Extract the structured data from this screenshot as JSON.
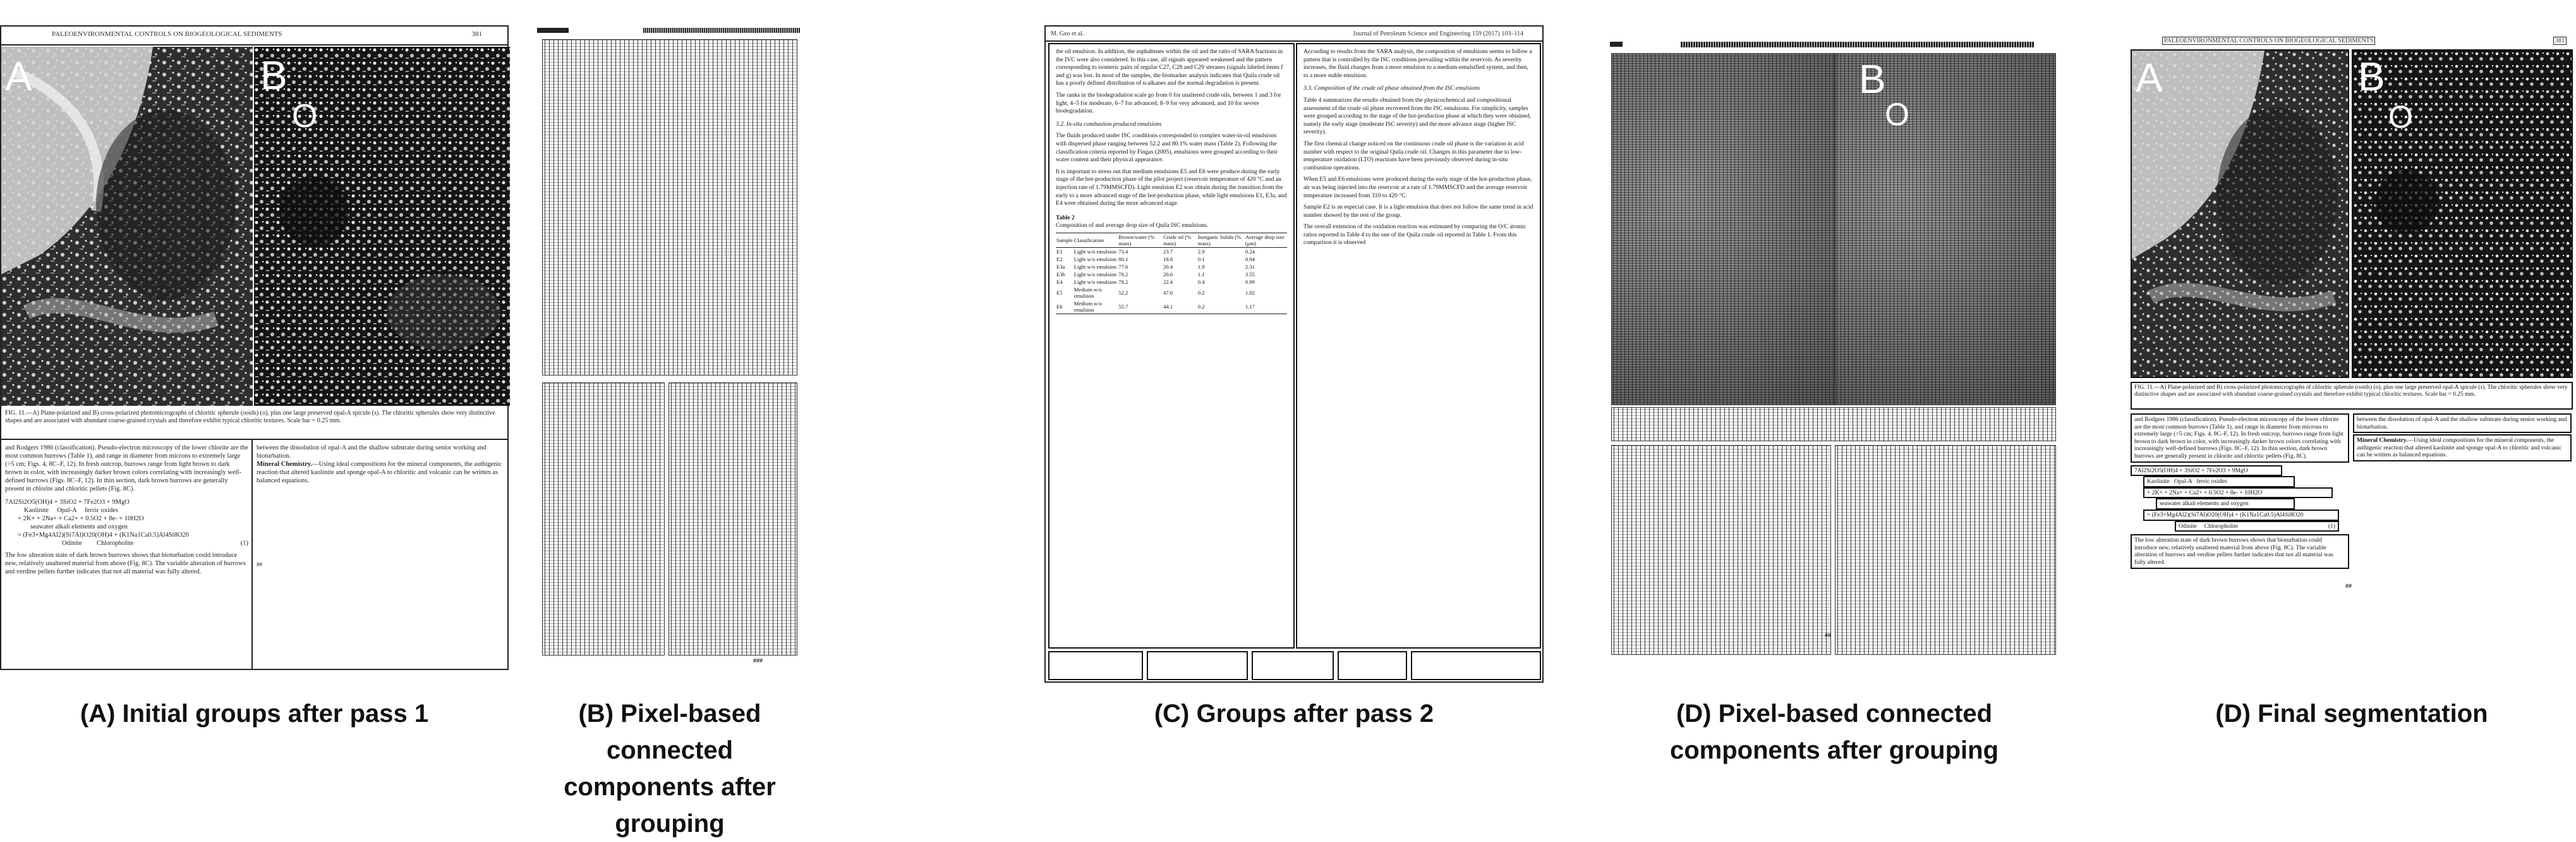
{
  "captions": {
    "a": {
      "line1": "(A) Initial groups after pass 1",
      "line2": ""
    },
    "b": {
      "line1": "(B) Pixel-based connected",
      "line2": "components  after grouping"
    },
    "c": {
      "line1": "(C) Groups after pass 2",
      "line2": ""
    },
    "d1": {
      "line1": "(D) Pixel-based connected",
      "line2": "components  after grouping"
    },
    "d2": {
      "line1": "(D) Final segmentation",
      "line2": ""
    }
  },
  "panel_a": {
    "header": "PALEOENVIRONMENTAL CONTROLS ON BIOGEOLOGICAL SEDIMENTS",
    "page_no": "381",
    "label_a": "A",
    "label_b": "B",
    "label_o": "O",
    "fig_caption": "FIG. 11.—A) Plane-polarized and B) cross-polarized photomicrographs of chloritic spherule (ooids) (o), plus one large preserved opal-A spicule (s). The chloritic spherules show very distinctive shapes and are associated with abundant coarse-grained crystals and therefore exhibit typical chloritic textures. Scale bar = 0.25 mm.",
    "left_text": "and Rodgers 1986 (classification). Pseudo-electron microscopy of the lower chlorite are the most common burrows (Table 1), and range in diameter from microns to extremely large (>5 cm; Figs. 4, 8C–F, 12). In fresh outcrop, burrows range from light brown to dark brown in color, with increasingly darker brown colors correlating with increasingly well-defined burrows (Figs. 8C–F, 12). In thin section, dark brown burrows are generally present in chlorite and chloritic pellets (Fig. 8C).",
    "right_text": "between the dissolution of opal-A and the shallow substrate during senior working and bioturbation.",
    "mineral_head": "Mineral Chemistry.",
    "mineral_text": "—Using ideal compositions for the mineral components, the authigenic reaction that altered kaolinite and sponge opal-A to chloritic and volcanic can be written as balanced equations.",
    "eq1": "7Al2Si2O5(OH)4 + 3SiO2 + 7Fe2O3 + 9MgO",
    "eq_kaolinite": "Kaolinite",
    "eq_opal": "Opal-A",
    "eq_ferric": "ferric oxides",
    "eq2": "+ 2K+ + 2Na+ + Ca2+ + 0.5O2 + 8e- + 10H2O",
    "eq_aq": "seawater alkali elements and oxygen",
    "eq3": "= (Fe3+Mg4Al2)(Si7Al)O20(OH)4 + (K1Na1Ca0.5)Al4Si8O20",
    "eq_odinite": "Odinite",
    "eq_chloro": "Chloropholite",
    "eq_num": "(1)",
    "bottom_text": "The low alteration state of dark brown burrows shows that bioturbation could introduce new, relatively unaltered material from above (Fig. 8C). The variable alteration of burrows and verdine pellets further indicates that not all material was fully altered.",
    "page_marker": "##"
  },
  "panel_b": {
    "header": "MMMMMMM",
    "page_no": "###"
  },
  "panel_c": {
    "header_left": "M. Geo et al.",
    "header_right": "Journal of Petroleum Science and Engineering 159 (2017) 103–114",
    "left_p1": "the oil emulsion. In addition, the asphaltenes within the oil and the ratio of SARA fractions in the IVC were also considered. In this case, all signals appeared weakened and the pattern corresponding to isomeric pairs of regular C27, C28 and C29 steranes (signals labeled items f and g) was lost. In most of the samples, the biomarker analysis indicates that Quila crude oil has a poorly defined distribution of n-alkanes and the normal degradation is present.",
    "left_p2": "The ranks in the biodegradation scale go from 0 for unaltered crude oils, between 1 and 3 for light, 4–5 for moderate, 6–7 for advanced, 8–9 for very advanced, and 10 for severe biodegradation.",
    "section_32": "3.2. In-situ combustion produced emulsions",
    "left_p3": "The fluids produced under ISC conditions corresponded to complex water-in-oil emulsions with dispersed phase ranging between 52.2 and 80.1% water mass (Table 2). Following the classification criteria reported by Fingas (2005), emulsions were grouped according to their water content and their physical appearance.",
    "left_p4": "It is important to stress out that medium emulsions E5 and E6 were produce during the early stage of the hot-production phase of the pilot project (reservoir temperature of 420 °C and an injection rate of 1.79MMSCFD). Light emulsion E2 was obtain during the transition from the early to a more advanced stage of the hot-production phase, while light emulsions E1, E3a, and E4 were obtained during the more advanced stage.",
    "table_title": "Table 2",
    "table_desc": "Composition of and average drop size of Quila ISC emulsions.",
    "table_cols": [
      "Sample",
      "Classification",
      "Brown/water (% mass)",
      "Crude oil (% mass)",
      "Inorganic Solids (% mass)",
      "Average drop size (μm)"
    ],
    "table_rows": [
      [
        "E1",
        "Light w/o emulsion",
        "73.4",
        "23.7",
        "2.9",
        "0.24"
      ],
      [
        "E2",
        "Light w/o emulsion",
        "80.1",
        "18.8",
        "0.1",
        "0.94"
      ],
      [
        "E3a",
        "Light w/o emulsion",
        "77.6",
        "20.4",
        "1.9",
        "2.31"
      ],
      [
        "E3b",
        "Light w/o emulsion",
        "78.2",
        "20.6",
        "1.1",
        "3.55"
      ],
      [
        "E4",
        "Light w/o emulsion",
        "78.2",
        "22.4",
        "0.4",
        "0.99"
      ],
      [
        "E5",
        "Medium w/o emulsion",
        "52.2",
        "47.6",
        "0.2",
        "1.02"
      ],
      [
        "E6",
        "Medium w/o emulsion",
        "55.7",
        "44.1",
        "0.2",
        "1.17"
      ]
    ],
    "right_p1": "According to results from the SARA analysis, the composition of emulsions seems to follow a pattern that is controlled by the ISC conditions prevailing within the reservoir. As severity increases, the fluid changes from a more emulsion to a medium-emulsified system, and then, to a more stable emulsion.",
    "section_33": "3.3. Composition of the crude oil phase obtained from the ISC emulsions",
    "right_p2": "Table 4 summarizes the results obtained from the physicochemical and compositional assessment of the crude oil phase recovered from the ISC emulsions. For simplicity, samples were grouped according to the stage of the hot-production phase at which they were obtained, namely the early stage (moderate ISC severity) and the more advance stage (higher ISC severity).",
    "right_p3": "The first chemical change noticed on the continuous crude oil phase is the variation in acid number with respect to the original Quila crude oil. Changes in this parameter due to low-temperature oxidation (LTO) reactions have been previously observed during in-situ combustion operations.",
    "right_p4": "When E5 and E6 emulsions were produced during the early stage of the hot-production phase, air was being injected into the reservoir at a rate of 1.79MMSCFD and the average reservoir temperature increased from 310 to 420 °C.",
    "right_p5": "Sample E2 is an especial case. It is a light emulsion that does not follow the same trend in acid number showed by the rest of the group.",
    "right_p6": "The overall extension of the oxidation reaction was estimated by comparing the O/C atomic ratios reported in Table 4 to the one of the Quila crude oil reported in Table 1. From this comparison it is observed"
  },
  "panel_d1": {
    "header": "MMMMMMM",
    "label_b": "B",
    "label_o": "O",
    "page_no": "##"
  },
  "panel_d2": {
    "header": "PALEOENVIRONMENTAL CONTROLS ON BIOGEOLOGICAL SEDIMENTS",
    "page_no": "381",
    "label_a": "A",
    "label_b": "B",
    "label_o": "O",
    "fig_caption": "FIG. 11.—A) Plane-polarized and B) cross-polarized photomicrographs of chloritic spherule (ooids) (o), plus one large preserved opal-A spicule (s). The chloritic spherules show very distinctive shapes and are associated with abundant coarse-grained crystals and therefore exhibit typical chloritic textures. Scale bar = 0.25 mm.",
    "left_text": "and Rodgers 1986 (classification). Pseudo-electron microscopy of the lower chlorite are the most common burrows (Table 1), and range in diameter from microns to extremely large (>5 cm; Figs. 4, 8C–F, 12). In fresh outcrop, burrows range from light brown to dark brown in color, with increasingly darker brown colors correlating with increasingly well-defined burrows (Figs. 8C–F, 12). In thin section, dark brown burrows are generally present in chlorite and chloritic pellets (Fig. 8C).",
    "right_text": "between the dissolution of opal-A and the shallow substrate during senior working and bioturbation.",
    "mineral_head": "Mineral Chemistry.",
    "mineral_text": "—Using ideal compositions for the mineral components, the authigenic reaction that altered kaolinite and sponge opal-A to chloritic and volcanic can be written as balanced equations.",
    "eq1": "7Al2Si2O5(OH)4 + 3SiO2 + 7Fe2O3 + 9MgO",
    "eq_kaolinite": "Kaolinite",
    "eq_opal": "Opal-A",
    "eq_ferric": "ferric oxides",
    "eq2": "+ 2K+ + 2Na+ + Ca2+ + 0.5O2 + 8e- + 10H2O",
    "eq_aq": "seawater alkali elements and oxygen",
    "eq3": "= (Fe3+Mg4Al2)(Si7Al)O20(OH)4 + (K1Na1Ca0.5)Al4Si8O20",
    "eq_odinite": "Odinite",
    "eq_chloro": "Chloropholite",
    "eq_num": "(1)",
    "bottom_text": "The low alteration state of dark brown burrows shows that bioturbation could introduce new, relatively unaltered material from above (Fig. 8C). The variable alteration of burrows and verdine pellets further indicates that not all material was fully altered.",
    "page_marker": "##"
  }
}
